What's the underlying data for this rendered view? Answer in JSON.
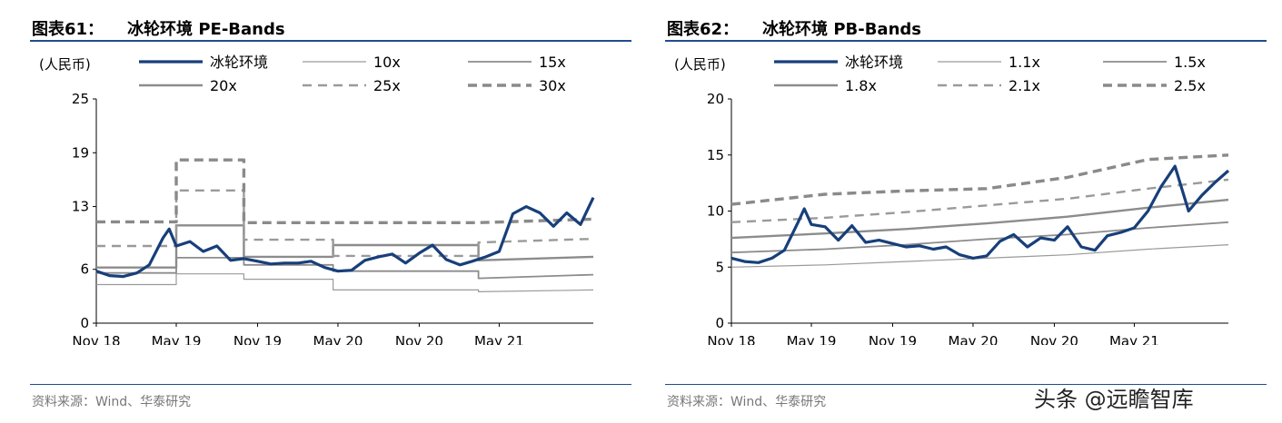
{
  "charts": [
    {
      "title_label": "图表61：",
      "title_text": "冰轮环境 PE-Bands",
      "source": "资料来源：Wind、华泰研究"
    },
    {
      "title_label": "图表62：",
      "title_text": "冰轮环境 PB-Bands",
      "source": "资料来源：Wind、华泰研究"
    }
  ],
  "watermark": "头条 @远瞻智库",
  "colors": {
    "navy": "#173f7a",
    "band_gray": "#8c8c8c",
    "rule_blue": "#1f4e8c"
  },
  "chart_data": [
    {
      "type": "line",
      "unit": "(人民币)",
      "x_ticks": [
        "Nov 18",
        "May 19",
        "Nov 19",
        "May 20",
        "Nov 20",
        "May 21"
      ],
      "x_tick_dates": [
        "2018-11-01",
        "2019-05-01",
        "2019-11-01",
        "2020-05-01",
        "2020-11-01",
        "2021-05-01"
      ],
      "x_range": [
        "2018-11-01",
        "2021-11-30"
      ],
      "y_ticks": [
        0,
        6,
        13,
        19,
        25
      ],
      "ylim": [
        0,
        25
      ],
      "legend_layout": "two rows across top",
      "series": [
        {
          "name": "冰轮环境",
          "style": "solid-thick",
          "dates": [
            "2018-11-01",
            "2018-12-01",
            "2019-01-01",
            "2019-02-01",
            "2019-03-01",
            "2019-04-01",
            "2019-04-15",
            "2019-05-01",
            "2019-06-01",
            "2019-07-01",
            "2019-08-01",
            "2019-09-01",
            "2019-10-01",
            "2019-11-01",
            "2019-12-01",
            "2020-01-01",
            "2020-02-01",
            "2020-03-01",
            "2020-04-01",
            "2020-05-01",
            "2020-06-01",
            "2020-07-01",
            "2020-08-01",
            "2020-09-01",
            "2020-10-01",
            "2020-11-01",
            "2020-12-01",
            "2021-01-01",
            "2021-02-01",
            "2021-03-01",
            "2021-04-01",
            "2021-05-01",
            "2021-06-01",
            "2021-07-01",
            "2021-08-01",
            "2021-09-01",
            "2021-10-01",
            "2021-11-01",
            "2021-11-30"
          ],
          "values": [
            5.8,
            5.3,
            5.2,
            5.6,
            6.5,
            9.5,
            10.5,
            8.6,
            9.1,
            8.0,
            8.6,
            7.0,
            7.2,
            6.9,
            6.6,
            6.7,
            6.7,
            6.9,
            6.2,
            5.8,
            5.9,
            7.0,
            7.4,
            7.7,
            6.7,
            7.8,
            8.7,
            7.1,
            6.5,
            6.9,
            7.4,
            8.0,
            12.2,
            13.0,
            12.3,
            10.8,
            12.3,
            11.0,
            14.0
          ]
        },
        {
          "name": "10x",
          "style": "thin",
          "dates": [
            "2018-11-01",
            "2019-05-01",
            "2019-05-01",
            "2019-10-01",
            "2019-10-01",
            "2020-04-20",
            "2020-04-20",
            "2021-03-15",
            "2021-03-15",
            "2021-11-30"
          ],
          "values": [
            4.3,
            4.3,
            5.5,
            5.5,
            4.9,
            4.9,
            3.7,
            3.7,
            3.5,
            3.7
          ]
        },
        {
          "name": "15x",
          "style": "medium",
          "dates": [
            "2018-11-01",
            "2019-05-01",
            "2019-05-01",
            "2019-10-01",
            "2019-10-01",
            "2020-04-20",
            "2020-04-20",
            "2021-03-15",
            "2021-03-15",
            "2021-11-30"
          ],
          "values": [
            5.6,
            5.6,
            7.3,
            7.3,
            6.5,
            6.5,
            5.8,
            5.8,
            5.0,
            5.4
          ]
        },
        {
          "name": "20x",
          "style": "thick",
          "dates": [
            "2018-11-01",
            "2019-05-01",
            "2019-05-01",
            "2019-10-01",
            "2019-10-01",
            "2020-04-20",
            "2020-04-20",
            "2021-03-15",
            "2021-03-15",
            "2021-11-30"
          ],
          "values": [
            6.2,
            6.2,
            10.9,
            10.9,
            7.4,
            7.4,
            8.7,
            8.7,
            7.0,
            7.4
          ]
        },
        {
          "name": "25x",
          "style": "dashed",
          "dates": [
            "2018-11-01",
            "2019-05-01",
            "2019-05-01",
            "2019-10-01",
            "2019-10-01",
            "2020-04-20",
            "2020-04-20",
            "2021-03-15",
            "2021-03-15",
            "2021-11-30"
          ],
          "values": [
            8.6,
            8.6,
            14.8,
            14.8,
            9.3,
            9.3,
            7.5,
            7.5,
            9.0,
            9.4
          ]
        },
        {
          "name": "30x",
          "style": "dashed-thick",
          "dates": [
            "2018-11-01",
            "2019-05-01",
            "2019-05-01",
            "2019-10-01",
            "2019-10-01",
            "2020-04-20",
            "2020-04-20",
            "2021-03-15",
            "2021-03-15",
            "2021-11-30"
          ],
          "values": [
            11.3,
            11.3,
            18.2,
            18.2,
            11.2,
            11.2,
            11.2,
            11.2,
            11.2,
            11.6
          ]
        }
      ]
    },
    {
      "type": "line",
      "unit": "(人民币)",
      "x_ticks": [
        "Nov 18",
        "May 19",
        "Nov 19",
        "May 20",
        "Nov 20",
        "May 21"
      ],
      "x_tick_dates": [
        "2018-11-01",
        "2019-05-01",
        "2019-11-01",
        "2020-05-01",
        "2020-11-01",
        "2021-05-01"
      ],
      "x_range": [
        "2018-11-01",
        "2021-11-30"
      ],
      "y_ticks": [
        0,
        5,
        10,
        15,
        20
      ],
      "ylim": [
        0,
        20
      ],
      "legend_layout": "two rows across top",
      "series": [
        {
          "name": "冰轮环境",
          "style": "solid-thick",
          "dates": [
            "2018-11-01",
            "2018-12-01",
            "2019-01-01",
            "2019-02-01",
            "2019-03-01",
            "2019-04-01",
            "2019-04-15",
            "2019-05-01",
            "2019-06-01",
            "2019-07-01",
            "2019-08-01",
            "2019-09-01",
            "2019-10-01",
            "2019-11-01",
            "2019-12-01",
            "2020-01-01",
            "2020-02-01",
            "2020-03-01",
            "2020-04-01",
            "2020-05-01",
            "2020-06-01",
            "2020-07-01",
            "2020-08-01",
            "2020-09-01",
            "2020-10-01",
            "2020-11-01",
            "2020-12-01",
            "2021-01-01",
            "2021-02-01",
            "2021-03-01",
            "2021-04-01",
            "2021-05-01",
            "2021-06-01",
            "2021-07-01",
            "2021-08-01",
            "2021-09-01",
            "2021-10-01",
            "2021-11-01",
            "2021-11-30"
          ],
          "values": [
            5.8,
            5.5,
            5.4,
            5.8,
            6.5,
            9.0,
            10.2,
            8.8,
            8.6,
            7.4,
            8.7,
            7.2,
            7.4,
            7.1,
            6.8,
            6.9,
            6.6,
            6.8,
            6.1,
            5.8,
            6.0,
            7.3,
            7.9,
            6.8,
            7.6,
            7.4,
            8.6,
            6.8,
            6.5,
            7.8,
            8.1,
            8.5,
            10.0,
            12.2,
            14.0,
            10.0,
            11.4,
            12.6,
            13.6
          ]
        },
        {
          "name": "1.1x",
          "style": "thin",
          "dates": [
            "2018-11-01",
            "2019-06-01",
            "2019-12-01",
            "2020-06-01",
            "2020-12-01",
            "2021-06-01",
            "2021-11-30"
          ],
          "values": [
            5.0,
            5.2,
            5.5,
            5.8,
            6.1,
            6.6,
            7.0
          ]
        },
        {
          "name": "1.5x",
          "style": "medium",
          "dates": [
            "2018-11-01",
            "2019-06-01",
            "2019-12-01",
            "2020-06-01",
            "2020-12-01",
            "2021-06-01",
            "2021-11-30"
          ],
          "values": [
            6.3,
            6.6,
            7.0,
            7.5,
            7.9,
            8.5,
            9.0
          ]
        },
        {
          "name": "1.8x",
          "style": "thick",
          "dates": [
            "2018-11-01",
            "2019-06-01",
            "2019-12-01",
            "2020-06-01",
            "2020-12-01",
            "2021-06-01",
            "2021-11-30"
          ],
          "values": [
            7.6,
            8.0,
            8.4,
            8.9,
            9.5,
            10.3,
            11.0
          ]
        },
        {
          "name": "2.1x",
          "style": "dashed",
          "dates": [
            "2018-11-01",
            "2019-06-01",
            "2019-12-01",
            "2020-06-01",
            "2020-12-01",
            "2021-06-01",
            "2021-11-30"
          ],
          "values": [
            9.0,
            9.4,
            9.9,
            10.5,
            11.1,
            12.0,
            12.8
          ]
        },
        {
          "name": "2.5x",
          "style": "dashed-thick",
          "dates": [
            "2018-11-01",
            "2019-06-01",
            "2019-12-01",
            "2020-06-01",
            "2020-12-01",
            "2021-06-01",
            "2021-11-30"
          ],
          "values": [
            10.6,
            11.5,
            11.8,
            12.0,
            13.0,
            14.6,
            15.0
          ]
        }
      ]
    }
  ]
}
